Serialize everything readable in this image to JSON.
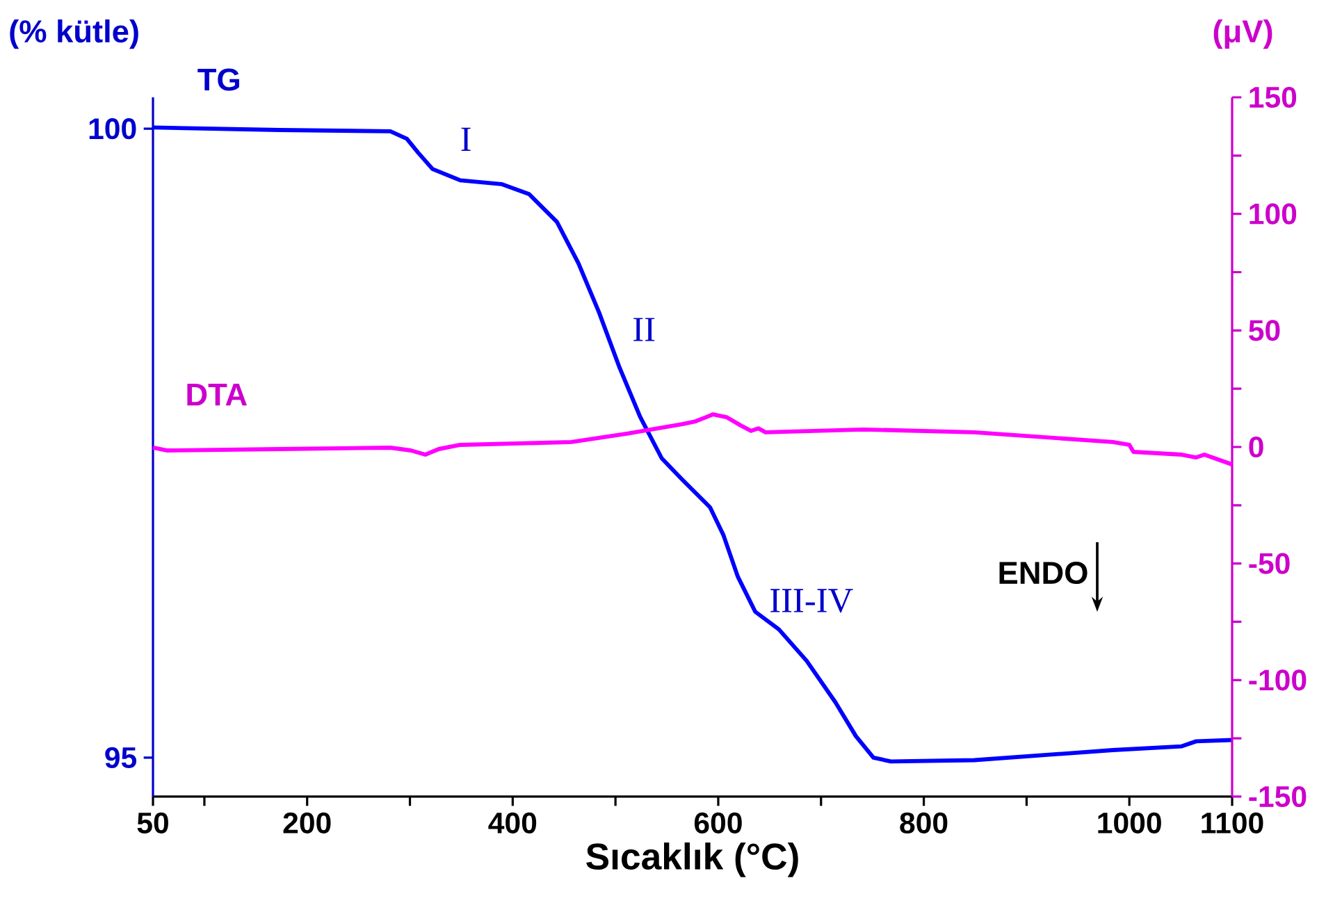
{
  "chart_data": {
    "type": "line",
    "xlabel": "Sıcaklık (°C)",
    "ylabel": "(% kütle)",
    "y2label": "(μV)",
    "xlim": [
      50,
      1100
    ],
    "xticks": [
      50,
      {
        "value": 100,
        "label": null
      },
      200,
      {
        "value": 300,
        "label": null
      },
      400,
      {
        "value": 500,
        "label": null
      },
      600,
      {
        "value": 700,
        "label": null
      },
      800,
      {
        "value": 900,
        "label": null
      },
      1000,
      1100
    ],
    "ylim": [
      94.69,
      100.25
    ],
    "yticks": [
      95,
      100
    ],
    "y2lim": [
      -150,
      150
    ],
    "y2ticks": [
      -150,
      {
        "value": -125,
        "label": null
      },
      -100,
      {
        "value": -75,
        "label": null
      },
      -50,
      {
        "value": -25,
        "label": null
      },
      0,
      {
        "value": 25,
        "label": null
      },
      50,
      {
        "value": 75,
        "label": null
      },
      100,
      {
        "value": 125,
        "label": null
      },
      150
    ],
    "marker": "none",
    "line_style": "solid",
    "series": [
      {
        "name": "TG",
        "color": "#0000ff",
        "x": [
          50,
          173,
          281,
          297,
          308,
          322,
          349,
          389,
          416,
          443,
          464,
          484,
          504,
          524,
          545,
          565,
          592,
          605,
          619,
          636,
          659,
          686,
          714,
          734,
          751,
          768,
          849,
          984,
          1051,
          1065,
          1100
        ],
        "values": [
          100.01,
          99.99,
          99.98,
          99.92,
          99.81,
          99.68,
          99.59,
          99.56,
          99.48,
          99.26,
          98.93,
          98.54,
          98.1,
          97.71,
          97.38,
          97.21,
          96.99,
          96.77,
          96.44,
          96.16,
          96.02,
          95.77,
          95.44,
          95.17,
          95.0,
          94.97,
          94.98,
          95.06,
          95.09,
          95.13,
          95.14
        ]
      },
      {
        "name": "DTA",
        "color": "#ff00ff",
        "axis": "y2",
        "x": [
          50,
          64,
          173,
          281,
          301,
          315,
          328,
          349,
          457,
          511,
          565,
          578,
          595,
          608,
          622,
          632,
          639,
          646,
          741,
          849,
          984,
          1000,
          1004,
          1051,
          1065,
          1073,
          1100
        ],
        "values": [
          -0.3,
          -1.5,
          -0.9,
          -0.3,
          -1.5,
          -3.3,
          -0.9,
          0.9,
          2.1,
          5.7,
          9.8,
          11.0,
          14.0,
          12.8,
          9.2,
          6.9,
          8.0,
          6.3,
          7.5,
          6.3,
          2.1,
          0.9,
          -2.1,
          -3.3,
          -4.5,
          -3.3,
          -7.5
        ]
      }
    ],
    "annotations": [
      "I",
      "II",
      "III-IV",
      "ENDO"
    ]
  }
}
